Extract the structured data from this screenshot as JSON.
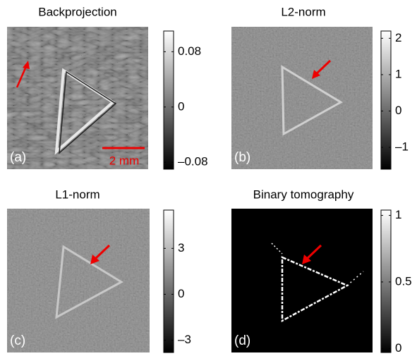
{
  "panels": [
    {
      "title": "Backprojection",
      "label": "(a)",
      "clim": [
        -0.09,
        0.11
      ],
      "ticks": [
        0.08,
        0,
        {
          "value": -0.08,
          "label": "–0.08"
        }
      ],
      "scale_bar": "2 mm"
    },
    {
      "title": "L2-norm",
      "label": "(b)",
      "clim": [
        -1.6,
        2.2
      ],
      "ticks": [
        2,
        1,
        0,
        {
          "value": -1,
          "label": "–1"
        }
      ]
    },
    {
      "title": "L1-norm",
      "label": "(c)",
      "clim": [
        -3.8,
        5.5
      ],
      "ticks": [
        3,
        0,
        {
          "value": -3,
          "label": "–3"
        }
      ]
    },
    {
      "title": "Binary tomography",
      "label": "(d)",
      "clim": [
        -0.03,
        1.04
      ],
      "ticks": [
        1,
        0.5,
        0
      ]
    }
  ]
}
